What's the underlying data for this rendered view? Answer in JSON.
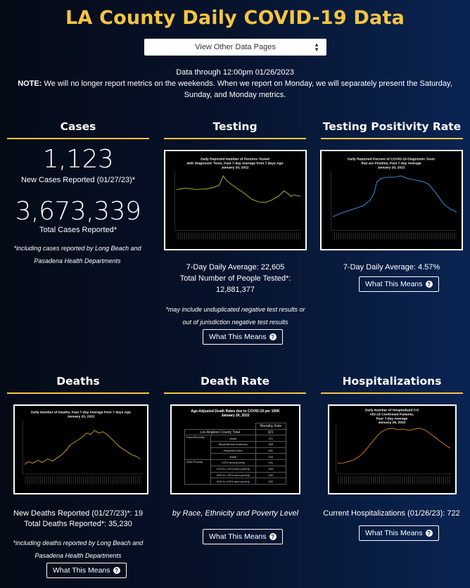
{
  "header": {
    "title": "LA County Daily COVID-19 Data",
    "select_label": "View Other Data Pages",
    "data_through": "Data through 12:00pm 01/26/2023",
    "note_label": "NOTE:",
    "note_text": " We will no longer report metrics on the weekends. When we report on Monday, we will separately present the Saturday, Sunday, and Monday metrics."
  },
  "cases": {
    "heading": "Cases",
    "new_value": "1,123",
    "new_label": "New Cases Reported (01/27/23)*",
    "total_value": "3,673,339",
    "total_label": "Total Cases Reported*",
    "footnote": "*including cases reported by Long Beach and Pasadena Health Departments"
  },
  "testing": {
    "heading": "Testing",
    "chart_title_1": "Daily Reported Number of Persons Tested",
    "chart_title_2": "with Diagnostic Tests, Past 7-day Average from 7 days Ago",
    "chart_title_3": "January 20, 2022",
    "avg_text": "7-Day Daily Average: 22,605",
    "total_label": "Total Number of People Tested*:",
    "total_value": "12,881,377",
    "footnote": "*may include unduplicated negative test results or out of jurisdiction negative test results",
    "button_label": "What This Means"
  },
  "positivity": {
    "heading": "Testing Positivity Rate",
    "chart_title_1": "Daily Reported Percent of COVID-19 Diagnostic Tests",
    "chart_title_2": "that are Positive, Past 7-day Average",
    "chart_title_3": "January 20, 2022",
    "avg_text": "7-Day Daily Average: 4.57%",
    "button_label": "What This Means"
  },
  "deaths": {
    "heading": "Deaths",
    "chart_title_1": "Daily Number of Deaths, Past 7-day Average from 7 days Ago",
    "chart_title_2": "January 20, 2022",
    "new_text": "New Deaths Reported (01/27/23)*: 19",
    "total_text": "Total Deaths Reported*: 35,230",
    "footnote": "*including deaths reported by Long Beach and Pasadena Health Departments",
    "button_label": "What This Means"
  },
  "death_rate": {
    "heading": "Death Rate",
    "chart_title_1": "Age-Adjusted Death Rates due to COVID-19 per 100K",
    "chart_title_2": "January 26, 2022",
    "col_header": "Mortality Rate",
    "total_row_label": "Los Angeles County Total",
    "total_row_value": "321",
    "group_race": "Race/Ethnicity",
    "group_poverty": "Area Poverty",
    "rows": [
      {
        "label": "Asian",
        "value": "221"
      },
      {
        "label": "Black/African American",
        "value": "365"
      },
      {
        "label": "Hispanic/Latino",
        "value": "481"
      },
      {
        "label": "White",
        "value": "204"
      },
      {
        "label": "<10% area poverty",
        "value": "131"
      },
      {
        "label": "10% to <20% area poverty",
        "value": "264"
      },
      {
        "label": "20% to <30% area poverty",
        "value": "430"
      },
      {
        "label": "30% to 100% area poverty",
        "value": "350"
      }
    ],
    "caption": "by Race, Ethnicity and Poverty Level",
    "button_label": "What This Means"
  },
  "hospitalizations": {
    "heading": "Hospitalizations",
    "chart_title_1": "Daily Number of Hospitalized CO",
    "chart_title_2": "VID-19 Confirmed Patients,",
    "chart_title_3": "Past 7-day Average",
    "chart_title_4": "January 26, 2022",
    "current_text": "Current Hospitalizations (01/26/23): 722",
    "button_label": "What This Means"
  },
  "colors": {
    "accent": "#f4c542",
    "testing_line": "#a8b832",
    "positivity_line": "#3c8fd6",
    "deaths_line": "#e0b020",
    "hosp_line": "#e08a2c"
  },
  "icons": {
    "select_arrow": "up-down-caret-icon",
    "help": "question-circle-icon"
  }
}
